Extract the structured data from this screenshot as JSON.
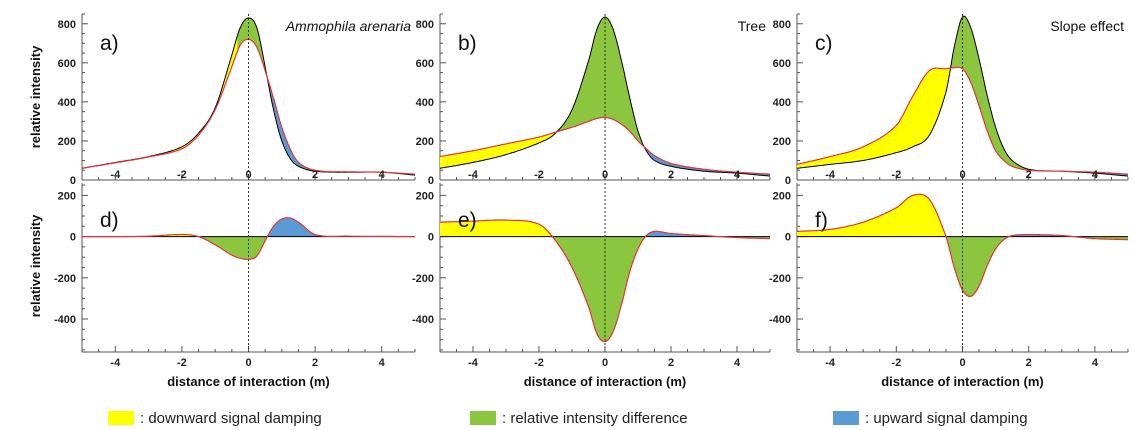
{
  "colors": {
    "downward": "#ffff00",
    "difference": "#8cc63f",
    "upward": "#5b9bd5",
    "reference": "#000000",
    "sensed": "#e0353b"
  },
  "common": {
    "ylabel": "relative intensity",
    "xlabel": "distance of interaction (m)",
    "xticks": [
      "-4",
      "-2",
      "0",
      "2",
      "4"
    ]
  },
  "legend": [
    {
      "label": ":  downward signal damping",
      "color": "#ffff00"
    },
    {
      "label": ":  relative intensity difference",
      "color": "#8cc63f"
    },
    {
      "label": ":  upward signal damping",
      "color": "#5b9bd5"
    }
  ],
  "chart_data": [
    {
      "panel": "a)",
      "title": "Ammophila arenaria",
      "title_italic": true,
      "type": "area",
      "xlim": [
        -5,
        5
      ],
      "ylim": [
        0,
        850
      ],
      "yticks": [
        "0",
        "200",
        "400",
        "600",
        "800"
      ],
      "x": [
        -5,
        -4,
        -3,
        -2,
        -1.5,
        -1,
        -0.5,
        -0.25,
        0,
        0.25,
        0.5,
        0.75,
        1,
        1.25,
        1.5,
        2,
        3,
        4,
        5
      ],
      "series": [
        {
          "name": "reference",
          "values": [
            60,
            90,
            120,
            170,
            240,
            370,
            640,
            780,
            830,
            780,
            580,
            360,
            200,
            110,
            70,
            45,
            40,
            40,
            25
          ]
        },
        {
          "name": "sensed",
          "values": [
            60,
            88,
            118,
            160,
            230,
            360,
            580,
            690,
            720,
            680,
            560,
            420,
            270,
            160,
            90,
            50,
            42,
            40,
            30
          ]
        }
      ]
    },
    {
      "panel": "b)",
      "title": "Tree",
      "title_italic": false,
      "type": "area",
      "xlim": [
        -5,
        5
      ],
      "ylim": [
        0,
        850
      ],
      "yticks": [
        "0",
        "200",
        "400",
        "600",
        "800"
      ],
      "x": [
        -5,
        -4,
        -3,
        -2,
        -1.5,
        -1,
        -0.5,
        -0.25,
        0,
        0.25,
        0.5,
        0.75,
        1,
        1.25,
        1.5,
        2,
        3,
        4,
        5
      ],
      "series": [
        {
          "name": "reference",
          "values": [
            60,
            90,
            130,
            190,
            240,
            360,
            610,
            770,
            835,
            770,
            610,
            420,
            250,
            150,
            100,
            70,
            45,
            35,
            20
          ]
        },
        {
          "name": "sensed",
          "values": [
            120,
            150,
            185,
            220,
            245,
            270,
            300,
            315,
            320,
            310,
            285,
            250,
            200,
            160,
            125,
            85,
            55,
            40,
            30
          ]
        }
      ]
    },
    {
      "panel": "c)",
      "title": "Slope effect",
      "title_italic": false,
      "type": "area",
      "xlim": [
        -5,
        5
      ],
      "ylim": [
        0,
        850
      ],
      "yticks": [
        "0",
        "200",
        "400",
        "600",
        "800"
      ],
      "x": [
        -5,
        -4,
        -3,
        -2,
        -1.5,
        -1,
        -0.5,
        -0.25,
        0,
        0.25,
        0.5,
        0.75,
        1,
        1.25,
        1.5,
        2,
        3,
        4,
        5
      ],
      "series": [
        {
          "name": "reference",
          "values": [
            60,
            80,
            100,
            140,
            170,
            230,
            450,
            680,
            835,
            780,
            620,
            430,
            270,
            160,
            100,
            55,
            45,
            35,
            20
          ]
        },
        {
          "name": "sensed",
          "values": [
            80,
            120,
            170,
            280,
            430,
            560,
            570,
            575,
            570,
            500,
            380,
            250,
            150,
            100,
            70,
            50,
            45,
            40,
            30
          ]
        }
      ]
    },
    {
      "panel": "d)",
      "type": "area",
      "xlim": [
        -5,
        5
      ],
      "ylim": [
        -560,
        260
      ],
      "yticks": [
        "-400",
        "-200",
        "0",
        "200"
      ],
      "x": [
        -5,
        -4,
        -3,
        -2,
        -1.5,
        -1,
        -0.5,
        -0.25,
        0,
        0.25,
        0.5,
        0.75,
        1,
        1.25,
        1.5,
        2,
        3,
        4,
        5
      ],
      "series": [
        {
          "name": "difference",
          "values": [
            0,
            0,
            2,
            10,
            0,
            -40,
            -90,
            -105,
            -110,
            -95,
            -20,
            50,
            85,
            90,
            70,
            10,
            2,
            1,
            0
          ]
        }
      ]
    },
    {
      "panel": "e)",
      "type": "area",
      "xlim": [
        -5,
        5
      ],
      "ylim": [
        -560,
        260
      ],
      "yticks": [
        "-400",
        "-200",
        "0",
        "200"
      ],
      "x": [
        -5,
        -4,
        -3,
        -2,
        -1.5,
        -1,
        -0.5,
        -0.25,
        0,
        0.25,
        0.5,
        0.75,
        1,
        1.25,
        1.5,
        2,
        3,
        4,
        5
      ],
      "series": [
        {
          "name": "difference",
          "values": [
            70,
            75,
            80,
            60,
            -20,
            -150,
            -340,
            -470,
            -510,
            -460,
            -330,
            -170,
            -60,
            5,
            25,
            15,
            5,
            -5,
            -10
          ]
        }
      ]
    },
    {
      "panel": "f)",
      "type": "area",
      "xlim": [
        -5,
        5
      ],
      "ylim": [
        -560,
        260
      ],
      "yticks": [
        "-400",
        "-200",
        "0",
        "200"
      ],
      "x": [
        -5,
        -4,
        -3,
        -2,
        -1.5,
        -1,
        -0.5,
        -0.25,
        0,
        0.25,
        0.5,
        0.75,
        1,
        1.25,
        1.5,
        2,
        3,
        4,
        5
      ],
      "series": [
        {
          "name": "difference",
          "values": [
            25,
            35,
            70,
            140,
            200,
            180,
            0,
            -150,
            -260,
            -290,
            -240,
            -140,
            -60,
            -15,
            5,
            10,
            5,
            -10,
            -15
          ]
        }
      ]
    }
  ]
}
